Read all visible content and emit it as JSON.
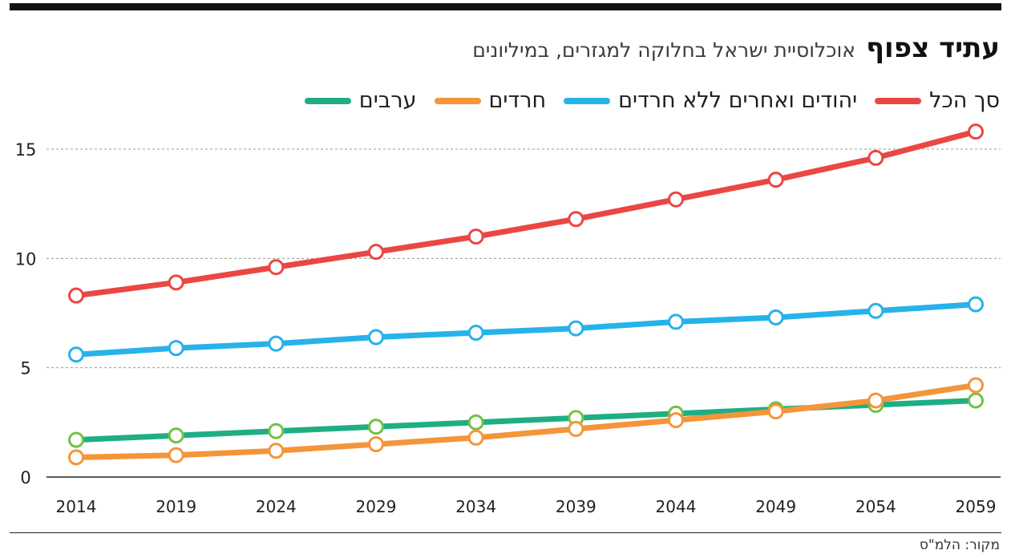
{
  "header": {
    "title_bold": "עתיד צפוף",
    "title_sub": "אוכלוסיית ישראל בחלוקה למגזרים, במיליונים"
  },
  "legend": [
    {
      "label": "סך הכל",
      "color": "#ea4744"
    },
    {
      "label": "יהודים ואחרים ללא חרדים",
      "color": "#27b2ea"
    },
    {
      "label": "חרדים",
      "color": "#f4953a"
    },
    {
      "label": "ערבים",
      "color": "#1fae84"
    }
  ],
  "source": "מקור: הלמ\"ס",
  "chart_data": {
    "type": "line",
    "title": "אוכלוסיית ישראל בחלוקה למגזרים, במיליונים",
    "xlabel": "",
    "ylabel": "",
    "x": [
      2014,
      2019,
      2024,
      2029,
      2034,
      2039,
      2044,
      2049,
      2054,
      2059
    ],
    "ylim": [
      0,
      16
    ],
    "yticks": [
      0,
      5,
      10,
      15
    ],
    "grid": "horizontal-dashed",
    "legend_position": "top-right",
    "series": [
      {
        "name": "סך הכל",
        "color": "#ea4744",
        "marker_color": "#ea4744",
        "values": [
          8.3,
          8.9,
          9.6,
          10.3,
          11.0,
          11.8,
          12.7,
          13.6,
          14.6,
          15.8
        ]
      },
      {
        "name": "יהודים ואחרים ללא חרדים",
        "color": "#27b2ea",
        "marker_color": "#27b2ea",
        "values": [
          5.6,
          5.9,
          6.1,
          6.4,
          6.6,
          6.8,
          7.1,
          7.3,
          7.6,
          7.9
        ]
      },
      {
        "name": "ערבים",
        "color": "#1fae84",
        "marker_color": "#72c147",
        "values": [
          1.7,
          1.9,
          2.1,
          2.3,
          2.5,
          2.7,
          2.9,
          3.1,
          3.3,
          3.5
        ]
      },
      {
        "name": "חרדים",
        "color": "#f4953a",
        "marker_color": "#f4953a",
        "values": [
          0.9,
          1.0,
          1.2,
          1.5,
          1.8,
          2.2,
          2.6,
          3.0,
          3.5,
          4.2
        ]
      }
    ]
  }
}
